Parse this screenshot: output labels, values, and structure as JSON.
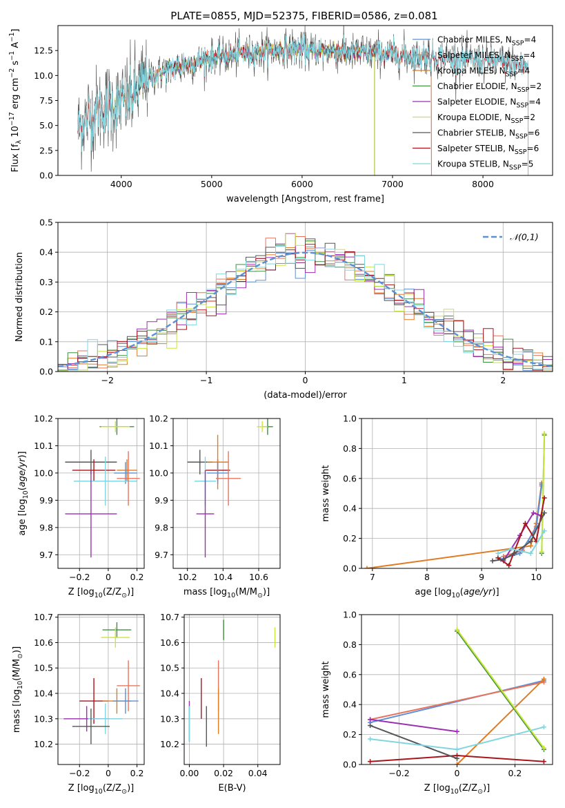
{
  "figure": {
    "title": "PLATE=0855, MJD=52375, FIBERID=0586, z=0.081"
  },
  "colors": {
    "chabrier_miles": "#5b8fd6",
    "salpeter_miles": "#e8735c",
    "kroupa_miles": "#e07b22",
    "chabrier_elodie": "#3f8f3f",
    "salpeter_elodie": "#9a2fb0",
    "kroupa_elodie": "#c9e63a",
    "chabrier_stelib": "#555555",
    "salpeter_stelib": "#a8141c",
    "kroupa_stelib": "#7fd6e0",
    "normal_curve": "#5b8fd6"
  },
  "chart_data": [
    {
      "id": "spectrum",
      "type": "line",
      "xlabel": "wavelength [Angstrom, rest frame]",
      "ylabel": "Flux [f_λ 10^-17 erg cm^-2 s^-1 A^-1]",
      "xlim": [
        3300,
        8770
      ],
      "ylim": [
        0,
        15
      ],
      "xticks": [
        4000,
        5000,
        6000,
        7000,
        8000
      ],
      "yticks": [
        0.0,
        2.5,
        5.0,
        7.5,
        10.0,
        12.5
      ],
      "grid": false,
      "legend_position": "right",
      "continuum_anchor_points": {
        "x": [
          3500,
          3650,
          3800,
          3950,
          4100,
          4250,
          4400,
          4600,
          4800,
          5000,
          5200,
          5400,
          5600,
          5800,
          6000,
          6200,
          6400,
          6600,
          6800,
          7000,
          7200,
          7400,
          7600,
          7800,
          8000,
          8200,
          8500
        ],
        "y": [
          4.5,
          6.0,
          6.8,
          7.0,
          7.8,
          9.3,
          10.2,
          10.8,
          11.3,
          11.8,
          12.0,
          12.3,
          12.4,
          12.6,
          12.6,
          12.5,
          12.4,
          12.3,
          12.2,
          12.1,
          12.0,
          11.9,
          11.7,
          11.6,
          11.5,
          11.3,
          11.0
        ]
      },
      "series": [
        {
          "name": "Chabrier MILES, N_SSP=4",
          "color_key": "chabrier_miles",
          "xrange": [
            3520,
            7430
          ]
        },
        {
          "name": "Salpeter MILES, N_SSP=4",
          "color_key": "salpeter_miles",
          "xrange": [
            3520,
            7430
          ]
        },
        {
          "name": "Kroupa MILES, N_SSP=4",
          "color_key": "kroupa_miles",
          "xrange": [
            3520,
            7430
          ]
        },
        {
          "name": "Chabrier ELODIE, N_SSP=2",
          "color_key": "chabrier_elodie",
          "xrange": [
            3900,
            6800
          ]
        },
        {
          "name": "Salpeter ELODIE, N_SSP=4",
          "color_key": "salpeter_elodie",
          "xrange": [
            3900,
            6800
          ]
        },
        {
          "name": "Kroupa ELODIE, N_SSP=2",
          "color_key": "kroupa_elodie",
          "xrange": [
            3900,
            6800
          ]
        },
        {
          "name": "Chabrier STELIB, N_SSP=6",
          "color_key": "chabrier_stelib",
          "xrange": [
            3520,
            8500
          ]
        },
        {
          "name": "Salpeter STELIB, N_SSP=6",
          "color_key": "salpeter_stelib",
          "xrange": [
            3520,
            8500
          ]
        },
        {
          "name": "Kroupa STELIB, N_SSP=5",
          "color_key": "kroupa_stelib",
          "xrange": [
            3520,
            8500
          ]
        }
      ]
    },
    {
      "id": "residuals",
      "type": "bar",
      "xlabel": "(data-model)/error",
      "ylabel": "Normed distribution",
      "xlim": [
        -2.5,
        2.5
      ],
      "ylim": [
        0,
        0.5
      ],
      "xticks": [
        -2,
        -1,
        0,
        1,
        2
      ],
      "yticks": [
        0.0,
        0.1,
        0.2,
        0.3,
        0.4,
        0.5
      ],
      "grid": true,
      "bin_width": 0.1,
      "legend": [
        {
          "name": "N(0,1)",
          "style": "dashed",
          "color_key": "normal_curve"
        }
      ],
      "legend_position": "top-right"
    },
    {
      "id": "age_vs_Z",
      "type": "scatter",
      "xlabel": "Z [log10(Z/Z_sun)]",
      "ylabel": "age [log10(age/yr)]",
      "xlim": [
        -0.35,
        0.25
      ],
      "ylim": [
        9.65,
        10.2
      ],
      "xticks": [
        -0.2,
        0.0,
        0.2
      ],
      "yticks": [
        9.7,
        9.8,
        9.9,
        10.0,
        10.1,
        10.2
      ],
      "grid": true,
      "points": [
        {
          "color_key": "chabrier_elodie",
          "x": 0.06,
          "y": 10.17,
          "xerr": 0.12,
          "yerr": 0.03
        },
        {
          "color_key": "kroupa_elodie",
          "x": 0.05,
          "y": 10.17,
          "xerr": 0.1,
          "yerr": 0.02
        },
        {
          "color_key": "chabrier_stelib",
          "x": -0.12,
          "y": 10.04,
          "xerr": 0.18,
          "yerr": 0.045
        },
        {
          "color_key": "salpeter_stelib",
          "x": -0.1,
          "y": 10.01,
          "xerr": 0.15,
          "yerr": 0.04
        },
        {
          "color_key": "kroupa_miles",
          "x": 0.13,
          "y": 10.01,
          "xerr": 0.07,
          "yerr": 0.04
        },
        {
          "color_key": "chabrier_miles",
          "x": 0.12,
          "y": 10.0,
          "xerr": 0.08,
          "yerr": 0.04
        },
        {
          "color_key": "kroupa_stelib",
          "x": -0.02,
          "y": 9.97,
          "xerr": 0.22,
          "yerr": 0.09
        },
        {
          "color_key": "salpeter_miles",
          "x": 0.14,
          "y": 9.98,
          "xerr": 0.08,
          "yerr": 0.1
        },
        {
          "color_key": "salpeter_elodie",
          "x": -0.12,
          "y": 9.85,
          "xerr": 0.18,
          "yerr": 0.16
        }
      ]
    },
    {
      "id": "age_vs_mass",
      "type": "scatter",
      "xlabel": "mass [log10(M/M_sun)]",
      "ylabel": "",
      "xlim": [
        10.12,
        10.72
      ],
      "ylim": [
        9.65,
        10.2
      ],
      "xticks": [
        10.2,
        10.4,
        10.6
      ],
      "yticks": [
        9.7,
        9.8,
        9.9,
        10.0,
        10.1,
        10.2
      ],
      "grid": true,
      "points": [
        {
          "color_key": "chabrier_elodie",
          "x": 10.65,
          "y": 10.17,
          "xerr": 0.03,
          "yerr": 0.03
        },
        {
          "color_key": "kroupa_elodie",
          "x": 10.62,
          "y": 10.17,
          "xerr": 0.03,
          "yerr": 0.02
        },
        {
          "color_key": "chabrier_stelib",
          "x": 10.27,
          "y": 10.04,
          "xerr": 0.07,
          "yerr": 0.045
        },
        {
          "color_key": "salpeter_stelib",
          "x": 10.37,
          "y": 10.01,
          "xerr": 0.07,
          "yerr": 0.04
        },
        {
          "color_key": "kroupa_miles",
          "x": 10.37,
          "y": 10.04,
          "xerr": 0.06,
          "yerr": 0.1
        },
        {
          "color_key": "chabrier_miles",
          "x": 10.37,
          "y": 10.0,
          "xerr": 0.06,
          "yerr": 0.04
        },
        {
          "color_key": "kroupa_stelib",
          "x": 10.3,
          "y": 9.97,
          "xerr": 0.06,
          "yerr": 0.09
        },
        {
          "color_key": "salpeter_miles",
          "x": 10.43,
          "y": 9.98,
          "xerr": 0.07,
          "yerr": 0.1
        },
        {
          "color_key": "salpeter_elodie",
          "x": 10.3,
          "y": 9.85,
          "xerr": 0.05,
          "yerr": 0.16
        }
      ]
    },
    {
      "id": "massweight_vs_age",
      "type": "line",
      "xlabel": "age [log10(age/yr)]",
      "ylabel": "mass weight",
      "xlim": [
        6.8,
        10.3
      ],
      "ylim": [
        0,
        1.0
      ],
      "xticks": [
        7,
        8,
        9,
        10
      ],
      "yticks": [
        0.0,
        0.2,
        0.4,
        0.6,
        0.8,
        1.0
      ],
      "grid": true,
      "series": [
        {
          "color_key": "kroupa_miles",
          "x": [
            6.9,
            9.9,
            10.0,
            10.1
          ],
          "y": [
            0.0,
            0.15,
            0.3,
            0.57
          ]
        },
        {
          "color_key": "salpeter_miles",
          "x": [
            9.4,
            9.75,
            10.0,
            10.1
          ],
          "y": [
            0.08,
            0.12,
            0.28,
            0.55
          ]
        },
        {
          "color_key": "chabrier_miles",
          "x": [
            9.35,
            9.7,
            10.0,
            10.1
          ],
          "y": [
            0.06,
            0.1,
            0.27,
            0.56
          ]
        },
        {
          "color_key": "chabrier_elodie",
          "x": [
            10.1,
            10.15
          ],
          "y": [
            0.1,
            0.89
          ]
        },
        {
          "color_key": "kroupa_elodie",
          "x": [
            10.1,
            10.15
          ],
          "y": [
            0.11,
            0.9
          ]
        },
        {
          "color_key": "salpeter_elodie",
          "x": [
            9.4,
            9.7,
            9.95,
            10.1
          ],
          "y": [
            0.05,
            0.22,
            0.37,
            0.35
          ]
        },
        {
          "color_key": "salpeter_stelib",
          "x": [
            9.3,
            9.5,
            9.8,
            10.0,
            10.15
          ],
          "y": [
            0.07,
            0.02,
            0.3,
            0.18,
            0.47
          ]
        },
        {
          "color_key": "chabrier_stelib",
          "x": [
            9.2,
            9.4,
            9.6,
            9.9,
            10.15
          ],
          "y": [
            0.05,
            0.06,
            0.1,
            0.18,
            0.37
          ]
        },
        {
          "color_key": "kroupa_stelib",
          "x": [
            9.3,
            9.55,
            9.9,
            10.15
          ],
          "y": [
            0.1,
            0.13,
            0.1,
            0.25
          ]
        }
      ]
    },
    {
      "id": "mass_vs_Z",
      "type": "scatter",
      "xlabel": "Z [log10(Z/Z_sun)]",
      "ylabel": "mass [log10(M/M_sun)]",
      "xlim": [
        -0.35,
        0.25
      ],
      "ylim": [
        10.12,
        10.71
      ],
      "xticks": [
        -0.2,
        0.0,
        0.2
      ],
      "yticks": [
        10.2,
        10.3,
        10.4,
        10.5,
        10.6,
        10.7
      ],
      "grid": true,
      "points": [
        {
          "color_key": "chabrier_elodie",
          "x": 0.06,
          "y": 10.65,
          "xerr": 0.1,
          "yerr": 0.03
        },
        {
          "color_key": "kroupa_elodie",
          "x": 0.05,
          "y": 10.62,
          "xerr": 0.1,
          "yerr": 0.04
        },
        {
          "color_key": "salpeter_miles",
          "x": 0.14,
          "y": 10.43,
          "xerr": 0.08,
          "yerr": 0.1
        },
        {
          "color_key": "salpeter_stelib",
          "x": -0.1,
          "y": 10.37,
          "xerr": 0.1,
          "yerr": 0.09
        },
        {
          "color_key": "kroupa_miles",
          "x": 0.06,
          "y": 10.37,
          "xerr": 0.1,
          "yerr": 0.05
        },
        {
          "color_key": "chabrier_miles",
          "x": 0.12,
          "y": 10.37,
          "xerr": 0.09,
          "yerr": 0.05
        },
        {
          "color_key": "salpeter_elodie",
          "x": -0.15,
          "y": 10.3,
          "xerr": 0.16,
          "yerr": 0.05
        },
        {
          "color_key": "kroupa_stelib",
          "x": -0.02,
          "y": 10.3,
          "xerr": 0.12,
          "yerr": 0.06
        },
        {
          "color_key": "chabrier_stelib",
          "x": -0.12,
          "y": 10.27,
          "xerr": 0.13,
          "yerr": 0.07
        }
      ]
    },
    {
      "id": "mass_vs_ebv",
      "type": "scatter",
      "xlabel": "E(B-V)",
      "ylabel": "",
      "xlim": [
        -0.003,
        0.053
      ],
      "ylim": [
        10.12,
        10.71
      ],
      "xticks": [
        0.0,
        0.02,
        0.04
      ],
      "yticks": [
        10.2,
        10.3,
        10.4,
        10.5,
        10.6,
        10.7
      ],
      "grid": true,
      "points": [
        {
          "color_key": "chabrier_elodie",
          "x": 0.02,
          "y": 10.65,
          "xerr": 0,
          "yerr": 0.04
        },
        {
          "color_key": "kroupa_elodie",
          "x": 0.05,
          "y": 10.62,
          "xerr": 0,
          "yerr": 0.04
        },
        {
          "color_key": "salpeter_miles",
          "x": 0.017,
          "y": 10.43,
          "xerr": 0,
          "yerr": 0.1
        },
        {
          "color_key": "salpeter_stelib",
          "x": 0.007,
          "y": 10.38,
          "xerr": 0,
          "yerr": 0.08
        },
        {
          "color_key": "kroupa_miles",
          "x": 0.017,
          "y": 10.33,
          "xerr": 0,
          "yerr": 0.09
        },
        {
          "color_key": "chabrier_stelib",
          "x": 0.01,
          "y": 10.27,
          "xerr": 0,
          "yerr": 0.08
        },
        {
          "color_key": "salpeter_elodie",
          "x": 0.0,
          "y": 10.29,
          "xerr": 0,
          "yerr": 0.08
        },
        {
          "color_key": "kroupa_stelib",
          "x": 0.0,
          "y": 10.28,
          "xerr": 0,
          "yerr": 0.07
        }
      ]
    },
    {
      "id": "massweight_vs_Z",
      "type": "line",
      "xlabel": "Z [log10(Z/Z_sun)]",
      "ylabel": "mass weight",
      "xlim": [
        -0.33,
        0.33
      ],
      "ylim": [
        0,
        1.0
      ],
      "xticks": [
        -0.2,
        0.0,
        0.2
      ],
      "yticks": [
        0.0,
        0.2,
        0.4,
        0.6,
        0.8,
        1.0
      ],
      "grid": true,
      "series": [
        {
          "color_key": "chabrier_miles",
          "x": [
            -0.3,
            0.3
          ],
          "y": [
            0.28,
            0.56
          ]
        },
        {
          "color_key": "salpeter_miles",
          "x": [
            -0.3,
            0.3
          ],
          "y": [
            0.3,
            0.55
          ]
        },
        {
          "color_key": "kroupa_miles",
          "x": [
            0.0,
            0.3
          ],
          "y": [
            0.0,
            0.57
          ]
        },
        {
          "color_key": "chabrier_elodie",
          "x": [
            0.0,
            0.3
          ],
          "y": [
            0.89,
            0.1
          ]
        },
        {
          "color_key": "kroupa_elodie",
          "x": [
            0.0,
            0.3
          ],
          "y": [
            0.9,
            0.11
          ]
        },
        {
          "color_key": "salpeter_elodie",
          "x": [
            -0.3,
            0.0
          ],
          "y": [
            0.3,
            0.22
          ]
        },
        {
          "color_key": "salpeter_stelib",
          "x": [
            -0.3,
            0.0,
            0.3
          ],
          "y": [
            0.02,
            0.06,
            0.02
          ]
        },
        {
          "color_key": "chabrier_stelib",
          "x": [
            -0.3,
            0.0
          ],
          "y": [
            0.26,
            0.04
          ]
        },
        {
          "color_key": "kroupa_stelib",
          "x": [
            -0.3,
            0.0,
            0.3
          ],
          "y": [
            0.17,
            0.1,
            0.25
          ]
        }
      ]
    }
  ]
}
